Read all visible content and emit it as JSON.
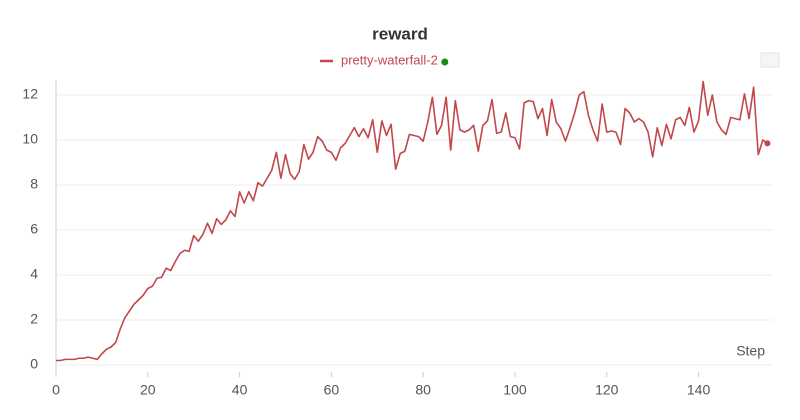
{
  "chart_data": {
    "type": "line",
    "title": "reward",
    "x_label": "Step",
    "x": [
      0,
      1,
      2,
      3,
      4,
      5,
      6,
      7,
      8,
      9,
      10,
      11,
      12,
      13,
      14,
      15,
      16,
      17,
      18,
      19,
      20,
      21,
      22,
      23,
      24,
      25,
      26,
      27,
      28,
      29,
      30,
      31,
      32,
      33,
      34,
      35,
      36,
      37,
      38,
      39,
      40,
      41,
      42,
      43,
      44,
      45,
      46,
      47,
      48,
      49,
      50,
      51,
      52,
      53,
      54,
      55,
      56,
      57,
      58,
      59,
      60,
      61,
      62,
      63,
      64,
      65,
      66,
      67,
      68,
      69,
      70,
      71,
      72,
      73,
      74,
      75,
      76,
      77,
      78,
      79,
      80,
      81,
      82,
      83,
      84,
      85,
      86,
      87,
      88,
      89,
      90,
      91,
      92,
      93,
      94,
      95,
      96,
      97,
      98,
      99,
      100,
      101,
      102,
      103,
      104,
      105,
      106,
      107,
      108,
      109,
      110,
      111,
      112,
      113,
      114,
      115,
      116,
      117,
      118,
      119,
      120,
      121,
      122,
      123,
      124,
      125,
      126,
      127,
      128,
      129,
      130,
      131,
      132,
      133,
      134,
      135,
      136,
      137,
      138,
      139,
      140,
      141,
      142,
      143,
      144,
      145,
      146,
      147,
      148,
      149,
      150,
      151,
      152,
      153,
      154,
      155
    ],
    "series": [
      {
        "name": "pretty-waterfall-2",
        "color": "#c2474b",
        "values": [
          0.2,
          0.2,
          0.25,
          0.25,
          0.25,
          0.3,
          0.3,
          0.35,
          0.3,
          0.25,
          0.5,
          0.7,
          0.8,
          1.0,
          1.6,
          2.1,
          2.4,
          2.7,
          2.9,
          3.1,
          3.4,
          3.5,
          3.85,
          3.9,
          4.3,
          4.2,
          4.6,
          4.95,
          5.1,
          5.05,
          5.75,
          5.5,
          5.8,
          6.3,
          5.85,
          6.5,
          6.25,
          6.45,
          6.85,
          6.6,
          7.7,
          7.2,
          7.7,
          7.3,
          8.1,
          7.95,
          8.3,
          8.65,
          9.45,
          8.3,
          9.35,
          8.5,
          8.25,
          8.6,
          9.8,
          9.15,
          9.45,
          10.15,
          9.95,
          9.55,
          9.45,
          9.1,
          9.65,
          9.85,
          10.2,
          10.55,
          10.15,
          10.5,
          10.1,
          10.9,
          9.45,
          10.85,
          10.2,
          10.7,
          8.7,
          9.4,
          9.5,
          10.25,
          10.2,
          10.15,
          9.95,
          10.8,
          11.9,
          10.25,
          10.65,
          11.9,
          9.55,
          11.75,
          10.45,
          10.35,
          10.45,
          10.65,
          9.5,
          10.65,
          10.85,
          11.8,
          10.3,
          10.35,
          11.2,
          10.15,
          10.1,
          9.6,
          11.65,
          11.75,
          11.7,
          10.95,
          11.4,
          10.2,
          11.8,
          10.8,
          10.5,
          9.95,
          10.55,
          11.2,
          12.0,
          12.15,
          11.1,
          10.45,
          9.95,
          11.6,
          10.35,
          10.4,
          10.35,
          9.8,
          11.4,
          11.2,
          10.8,
          10.95,
          10.8,
          10.35,
          9.25,
          10.55,
          9.75,
          10.7,
          10.05,
          10.9,
          11.0,
          10.65,
          11.45,
          10.35,
          10.85,
          12.6,
          11.1,
          12.0,
          10.8,
          10.45,
          10.25,
          11.0,
          10.95,
          10.9,
          12.05,
          10.95,
          12.35,
          9.35,
          10.0,
          9.85
        ]
      }
    ],
    "xlim": [
      0,
      156
    ],
    "xticks": [
      0,
      20,
      40,
      60,
      80,
      100,
      120,
      140
    ],
    "ylim": [
      -0.3,
      12.6
    ],
    "yticks": [
      0,
      2,
      4,
      6,
      8,
      10,
      12
    ],
    "grid": true
  }
}
